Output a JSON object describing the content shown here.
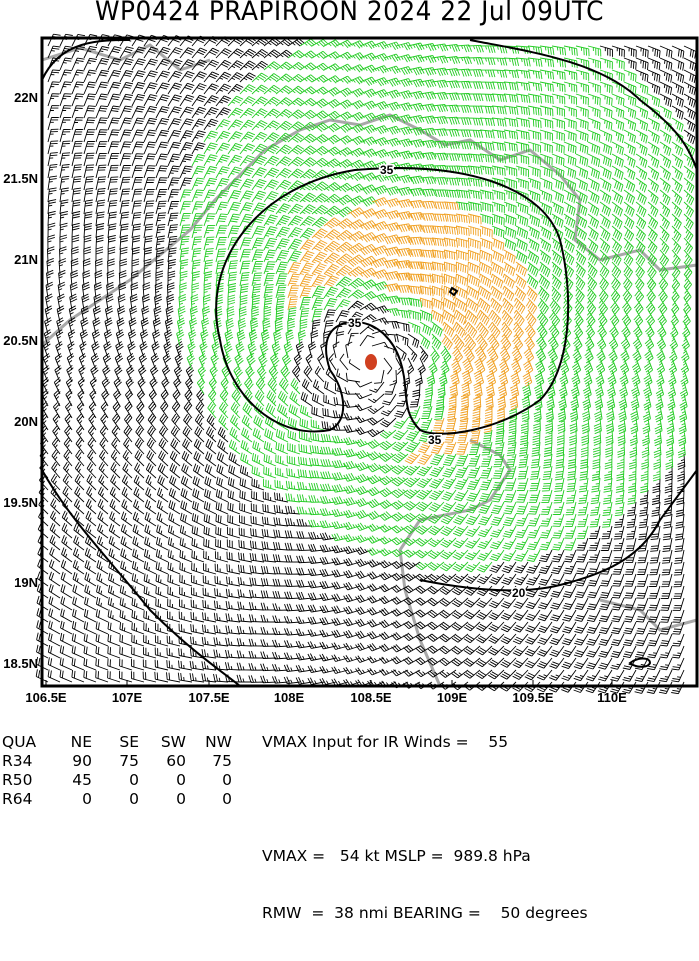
{
  "title": "WP0424   PRAPIROON 2024 22 Jul 09UTC",
  "x_ticks": [
    "106.5E",
    "107E",
    "107.5E",
    "108E",
    "108.5E",
    "109E",
    "109.5E",
    "110E"
  ],
  "y_ticks": [
    "22N",
    "21.5N",
    "21N",
    "20.5N",
    "20N",
    "19.5N",
    "19N",
    "18.5N"
  ],
  "contour_labels": [
    "35",
    "35",
    "35",
    "20"
  ],
  "colors": {
    "below_34kt": "#000000",
    "34_to_49kt": "#22cc22",
    "50_to_63kt": "#f0a020",
    "storm_center": "#d04020",
    "coastline": "#a0a0a0"
  },
  "storm_center": {
    "lon": 108.55,
    "lat": 20.35
  },
  "table": {
    "header": [
      "QUA",
      "NE",
      "SE",
      "SW",
      "NW"
    ],
    "rows": [
      [
        "R34",
        "90",
        "75",
        "60",
        "75"
      ],
      [
        "R50",
        "45",
        "0",
        "0",
        "0"
      ],
      [
        "R64",
        "0",
        "0",
        "0",
        "0"
      ]
    ]
  },
  "summary": {
    "line1": "VMAX Input for IR Winds =    55",
    "line2": "VMAX =   54 kt MSLP =  989.8 hPa",
    "line3": "RMW  =  38 nmi BEARING =    50 degrees"
  }
}
